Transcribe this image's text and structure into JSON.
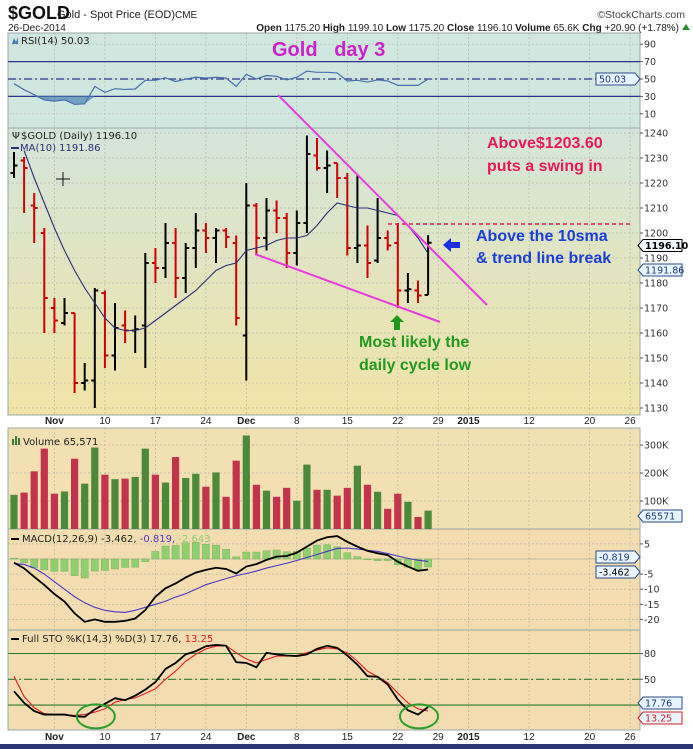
{
  "header": {
    "symbol": "$GOLD",
    "name": "Gold - Spot Price (EOD)",
    "exchange": "CME",
    "brand": "©StockCharts.com",
    "date": "26-Dec-2014",
    "open_label": "Open",
    "open": "1175.20",
    "high_label": "High",
    "high": "1199.10",
    "low_label": "Low",
    "low": "1175.20",
    "close_label": "Close",
    "close": "1196.10",
    "volume_label": "Volume",
    "volume": "65.6K",
    "chg_label": "Chg",
    "chg": "+20.90 (+1.78%)",
    "chg_icon": "triangle-up-icon"
  },
  "annotations": {
    "title": "Gold   day 3",
    "swing_line1": "Above$1203.60",
    "swing_line2": "puts a swing in",
    "break_line1": "Above the 10sma",
    "break_line2": "& trend line break",
    "low_line1": "Most likely the",
    "low_line2": "daily cycle low",
    "swing_level": 1203.6,
    "colors": {
      "title": "#cc22cc",
      "swing": "#e8195a",
      "break": "#1a3fd8",
      "low": "#1f9a1f",
      "trendline": "#e83ce0"
    }
  },
  "chart_data": [
    {
      "type": "line",
      "panel": "rsi",
      "legend": "RSI(14) 50.03",
      "last_tag": "50.03",
      "ylim": [
        0,
        100
      ],
      "ticks": [
        "90",
        "70",
        "50",
        "30",
        "10"
      ],
      "levels": [
        70,
        50,
        30
      ],
      "values": [
        44.6,
        37.7,
        32,
        26,
        24.6,
        26,
        20.8,
        21.5,
        41.5,
        34.6,
        38.8,
        38,
        38.5,
        48.5,
        48.5,
        51.5,
        47,
        50,
        52,
        51,
        52,
        51,
        41.5,
        55.4,
        50,
        54,
        53,
        49,
        52,
        59,
        57.7,
        57.7,
        57,
        47.7,
        48.5,
        46.5,
        49,
        47.7,
        42.7,
        42.7,
        42.7,
        50.03
      ]
    },
    {
      "type": "ohlc",
      "panel": "price",
      "legend": "$GOLD (Daily) 1196.10",
      "ma_legend": "MA(10) 1191.86",
      "last_tag": "1196.10",
      "ma_tag": "1191.86",
      "ylim": [
        1125,
        1245
      ],
      "ticks": [
        "1240",
        "1230",
        "1220",
        "1210",
        "1200",
        "1190",
        "1180",
        "1170",
        "1160",
        "1150",
        "1140",
        "1130"
      ],
      "colors": {
        "up": "#000000",
        "down": "#cc0000",
        "ma": "#2b2f7a"
      },
      "bars": [
        [
          "2014-10-28",
          1224,
          1232.4,
          1222,
          1227
        ],
        [
          "2014-10-29",
          1229,
          1230.4,
          1208,
          1226
        ],
        [
          "2014-10-30",
          1211,
          1216,
          1196,
          1210
        ],
        [
          "2014-10-31",
          1200,
          1202,
          1160,
          1174
        ],
        [
          "2014-11-03",
          1170,
          1174,
          1160,
          1165
        ],
        [
          "2014-11-04",
          1164,
          1174,
          1163,
          1168
        ],
        [
          "2014-11-05",
          1168,
          1168,
          1136,
          1140
        ],
        [
          "2014-11-06",
          1140,
          1148,
          1137,
          1141
        ],
        [
          "2014-11-07",
          1141,
          1178,
          1130,
          1177
        ],
        [
          "2014-11-10",
          1176,
          1177,
          1146,
          1151
        ],
        [
          "2014-11-11",
          1151,
          1172,
          1145,
          1162
        ],
        [
          "2014-11-12",
          1163,
          1169,
          1156,
          1161
        ],
        [
          "2014-11-13",
          1161,
          1167,
          1152,
          1161.5
        ],
        [
          "2014-11-14",
          1163,
          1192,
          1146,
          1188
        ],
        [
          "2014-11-17",
          1188,
          1194,
          1180,
          1186
        ],
        [
          "2014-11-18",
          1186,
          1204,
          1182,
          1196
        ],
        [
          "2014-11-19",
          1196,
          1202,
          1174,
          1182
        ],
        [
          "2014-11-20",
          1182,
          1196,
          1176,
          1194
        ],
        [
          "2014-11-21",
          1194,
          1208,
          1186,
          1201
        ],
        [
          "2014-11-24",
          1201,
          1204,
          1192,
          1198
        ],
        [
          "2014-11-25",
          1198,
          1202,
          1188,
          1201
        ],
        [
          "2014-11-26",
          1201,
          1202,
          1194,
          1198.4
        ],
        [
          "2014-11-28",
          1196,
          1199,
          1163,
          1166
        ],
        [
          "2014-12-01",
          1159,
          1220,
          1141,
          1211
        ],
        [
          "2014-12-02",
          1211,
          1212,
          1191,
          1198
        ],
        [
          "2014-12-03",
          1198,
          1214,
          1193,
          1209
        ],
        [
          "2014-12-04",
          1209,
          1213,
          1200,
          1206
        ],
        [
          "2014-12-05",
          1206,
          1208,
          1186,
          1192
        ],
        [
          "2014-12-08",
          1192,
          1209,
          1187,
          1204
        ],
        [
          "2014-12-09",
          1204,
          1239,
          1200,
          1231.6
        ],
        [
          "2014-12-10",
          1231,
          1238,
          1225,
          1226
        ],
        [
          "2014-12-11",
          1226,
          1233,
          1216,
          1227
        ],
        [
          "2014-12-12",
          1228,
          1228,
          1214,
          1222
        ],
        [
          "2014-12-15",
          1222,
          1224,
          1191,
          1194
        ],
        [
          "2014-12-16",
          1194,
          1223,
          1188,
          1195
        ],
        [
          "2014-12-17",
          1195,
          1203,
          1182,
          1188
        ],
        [
          "2014-12-18",
          1189,
          1214,
          1188,
          1198
        ],
        [
          "2014-12-19",
          1198,
          1201,
          1193,
          1195
        ],
        [
          "2014-12-22",
          1196,
          1204,
          1170,
          1177
        ],
        [
          "2014-12-23",
          1177,
          1184,
          1172,
          1177.5
        ],
        [
          "2014-12-24",
          1177,
          1181,
          1172,
          1175
        ],
        [
          "2014-12-26",
          1175.2,
          1199.1,
          1175.2,
          1196.1
        ]
      ],
      "ma10": [
        null,
        1233,
        1222,
        1212,
        1202,
        1193,
        1185,
        1178,
        1172,
        1166,
        1162,
        1161,
        1161,
        1162,
        1165,
        1168,
        1171,
        1174,
        1177,
        1181,
        1185,
        1187,
        1188,
        1193,
        1194,
        1195,
        1197,
        1198,
        1198,
        1199,
        1203,
        1208,
        1212,
        1211,
        1210,
        1210,
        1209,
        1208,
        1207,
        1203,
        1198,
        1191.86
      ]
    },
    {
      "type": "bar",
      "panel": "volume",
      "legend": "Volume 65,571",
      "last_tag": "65571",
      "ylim": [
        0,
        360000
      ],
      "ticks": [
        "300K",
        "200K",
        "100K"
      ],
      "colors": {
        "up": "#4a8a3a",
        "down": "#c2344e"
      },
      "values": [
        122000,
        130000,
        206000,
        287000,
        126000,
        134000,
        251000,
        162000,
        291000,
        194000,
        178000,
        180000,
        186000,
        287000,
        194000,
        166000,
        257000,
        182000,
        197000,
        151000,
        202000,
        115000,
        244000,
        334000,
        158000,
        137000,
        115000,
        147000,
        101000,
        230000,
        140000,
        140000,
        119000,
        147000,
        226000,
        158000,
        133000,
        72000,
        126000,
        97000,
        43000,
        65571
      ],
      "direction": [
        "up",
        "down",
        "down",
        "down",
        "down",
        "up",
        "down",
        "up",
        "up",
        "down",
        "up",
        "down",
        "up",
        "up",
        "down",
        "up",
        "down",
        "up",
        "up",
        "down",
        "up",
        "down",
        "down",
        "up",
        "down",
        "up",
        "down",
        "down",
        "up",
        "up",
        "down",
        "up",
        "down",
        "down",
        "up",
        "down",
        "up",
        "down",
        "down",
        "up",
        "down",
        "up"
      ]
    },
    {
      "type": "line",
      "panel": "macd",
      "legend_prefix": "MACD(12,26,9)",
      "legend_macd": "-3.462,",
      "legend_signal": "-0.819,",
      "legend_hist": "-2.643",
      "signal_tag": "-0.819",
      "macd_tag": "-3.462",
      "ylim": [
        -23,
        9.5
      ],
      "ticks": [
        "5",
        "-5",
        "-10",
        "-15",
        "-20"
      ],
      "colors": {
        "macd": "#000000",
        "signal": "#4a38c8",
        "hist": "#8fcf70"
      },
      "macd": [
        -1.2,
        -3.1,
        -5.9,
        -8.6,
        -11.6,
        -14.1,
        -18,
        -20.8,
        -20,
        -20.8,
        -20.8,
        -20.5,
        -19.7,
        -16.9,
        -12.5,
        -9.7,
        -8.1,
        -6.1,
        -4.5,
        -3.6,
        -2.9,
        -3.3,
        -4.8,
        -2.5,
        -1.7,
        -0.3,
        0.8,
        1.0,
        2.1,
        4.1,
        6.1,
        7.2,
        7.6,
        5.7,
        4.1,
        2.7,
        1.9,
        1.3,
        -0.9,
        -2.5,
        -3.9,
        -3.462
      ],
      "signal": [
        -1.5,
        -1.8,
        -3,
        -5,
        -7.5,
        -10,
        -12.5,
        -14.5,
        -16,
        -17,
        -17.5,
        -17.7,
        -17,
        -16,
        -15,
        -14,
        -12.6,
        -11.5,
        -10,
        -8.5,
        -7.5,
        -6.5,
        -5.5,
        -4.8,
        -4,
        -3,
        -2.2,
        -1.4,
        -0.5,
        0.5,
        1.5,
        2.5,
        3.5,
        3.6,
        3.3,
        2.9,
        2.5,
        1.8,
        1.0,
        0.2,
        -0.4,
        -0.819
      ]
    },
    {
      "type": "line",
      "panel": "stochastic",
      "legend_prefix": "Full STO %K(14,3) %D(3)",
      "legend_k": "17.76,",
      "legend_d": "13.25",
      "k_tag": "17.76",
      "d_tag": "13.25",
      "ylim": [
        0,
        100
      ],
      "ticks": [
        "80",
        "50"
      ],
      "levels": [
        80,
        50,
        20
      ],
      "colors": {
        "k": "#000000",
        "d": "#e02020",
        "levels": "#2d7a2d",
        "circles": "#2aa02a"
      },
      "k": [
        36,
        22.6,
        13,
        9,
        9,
        9,
        7,
        6.4,
        15,
        21.5,
        28,
        25.7,
        31,
        38,
        46.7,
        62,
        69,
        79,
        82.7,
        88.5,
        90,
        89,
        70,
        69,
        64,
        80.8,
        79,
        77.7,
        77,
        79,
        85.4,
        89,
        86.6,
        77.7,
        67,
        53.6,
        53,
        44,
        26.5,
        14,
        9,
        17.76
      ],
      "d": [
        53.6,
        30,
        17,
        10,
        9,
        8.7,
        8,
        9,
        11.8,
        15.7,
        23.4,
        26.5,
        28.4,
        33.5,
        39,
        50,
        59.5,
        71,
        79,
        85.4,
        88.5,
        89.3,
        80.8,
        73.8,
        69,
        73,
        77,
        77,
        77.7,
        80.8,
        84,
        86.6,
        85.4,
        80.8,
        71,
        59.5,
        53,
        46,
        34,
        22.6,
        15.7,
        13.25
      ],
      "circled_dates": [
        "2014-11-07",
        "2014-12-24"
      ]
    }
  ],
  "x_axis": {
    "ticks": [
      {
        "label": "Nov",
        "date": "2014-11-03",
        "bold": true
      },
      {
        "label": "10",
        "date": "2014-11-10"
      },
      {
        "label": "17",
        "date": "2014-11-17"
      },
      {
        "label": "24",
        "date": "2014-11-24"
      },
      {
        "label": "Dec",
        "date": "2014-12-01",
        "bold": true
      },
      {
        "label": "8",
        "date": "2014-12-08"
      },
      {
        "label": "15",
        "date": "2014-12-15"
      },
      {
        "label": "22",
        "date": "2014-12-22"
      },
      {
        "label": "29",
        "date": "2014-12-29"
      },
      {
        "label": "2015",
        "date": "2015-01-02",
        "bold": true
      },
      {
        "label": "12",
        "date": "2015-01-12"
      },
      {
        "label": "20",
        "date": "2015-01-20"
      },
      {
        "label": "26",
        "date": "2015-01-26"
      }
    ]
  }
}
